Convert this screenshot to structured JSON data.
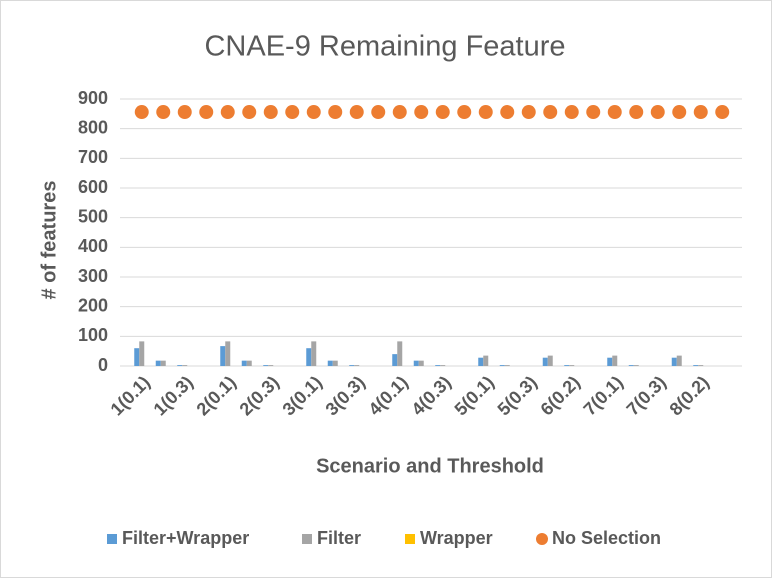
{
  "chart_data": {
    "type": "bar",
    "title": "CNAE-9 Remaining Feature",
    "x_label": "Scenario and Threshold",
    "y_label": "# of features",
    "categories": [
      "1(0.1)",
      null,
      "1(0.3)",
      null,
      "2(0.1)",
      null,
      "2(0.3)",
      null,
      "3(0.1)",
      null,
      "3(0.3)",
      null,
      "4(0.1)",
      null,
      "4(0.3)",
      null,
      "5(0.1)",
      null,
      "5(0.3)",
      null,
      "6(0.2)",
      null,
      "7(0.1)",
      null,
      "7(0.3)",
      null,
      "8(0.2)",
      null
    ],
    "series": [
      {
        "name": "Filter+Wrapper",
        "color": "#5b9bd5",
        "values": [
          60,
          18,
          3,
          null,
          67,
          18,
          3,
          null,
          60,
          18,
          3,
          null,
          40,
          18,
          3,
          null,
          28,
          3,
          null,
          28,
          3,
          null,
          28,
          3,
          null,
          28,
          3,
          null
        ]
      },
      {
        "name": "Filter",
        "color": "#a5a5a5",
        "values": [
          83,
          18,
          3,
          null,
          83,
          18,
          3,
          null,
          83,
          18,
          3,
          null,
          83,
          18,
          3,
          null,
          35,
          3,
          null,
          35,
          3,
          null,
          35,
          3,
          null,
          35,
          3,
          null
        ]
      },
      {
        "name": "Wrapper",
        "color": "#ffc000",
        "values": [
          0,
          0,
          0,
          null,
          0,
          0,
          0,
          null,
          0,
          0,
          0,
          null,
          0,
          0,
          0,
          null,
          0,
          0,
          null,
          0,
          0,
          null,
          0,
          0,
          null,
          0,
          0,
          null
        ]
      },
      {
        "name": "No Selection",
        "color": "#ed7d31",
        "marker": "dot",
        "values": [
          856,
          856,
          856,
          856,
          856,
          856,
          856,
          856,
          856,
          856,
          856,
          856,
          856,
          856,
          856,
          856,
          856,
          856,
          856,
          856,
          856,
          856,
          856,
          856,
          856,
          856,
          856,
          856
        ]
      }
    ],
    "ylim": [
      0,
      900
    ],
    "yticks": [
      0,
      100,
      200,
      300,
      400,
      500,
      600,
      700,
      800,
      900
    ],
    "grid": true
  }
}
